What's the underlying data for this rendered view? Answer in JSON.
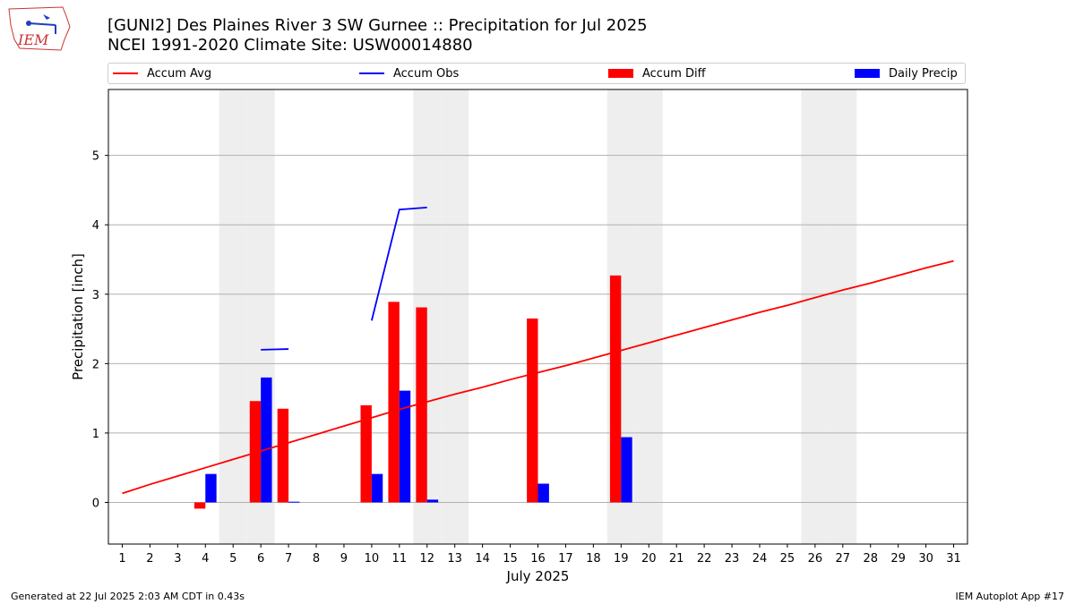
{
  "header": {
    "title_line1": "[GUNI2] Des Plaines River 3 SW Gurnee :: Precipitation for Jul 2025",
    "title_line2": "NCEI 1991-2020 Climate Site: USW00014880",
    "logo_text": "IEM"
  },
  "footer": {
    "generated": "Generated at 22 Jul 2025 2:03 AM CDT in 0.43s",
    "app": "IEM Autoplot App #17"
  },
  "colors": {
    "avg": "#ff0000",
    "obs": "#0000ff",
    "diff": "#ff0000",
    "daily": "#0000ff",
    "weekend": "#eeeeee",
    "grid": "#b0b0b0"
  },
  "chart_data": {
    "type": "bar",
    "xlabel": "July 2025",
    "ylabel": "Precipitation [inch]",
    "xlim": [
      0.5,
      31.5
    ],
    "ylim": [
      -0.6,
      5.95
    ],
    "yticks": [
      0,
      1,
      2,
      3,
      4,
      5
    ],
    "grid": "y",
    "legend_position": "top",
    "days": [
      1,
      2,
      3,
      4,
      5,
      6,
      7,
      8,
      9,
      10,
      11,
      12,
      13,
      14,
      15,
      16,
      17,
      18,
      19,
      20,
      21,
      22,
      23,
      24,
      25,
      26,
      27,
      28,
      29,
      30,
      31
    ],
    "weekend_days": [
      5,
      6,
      12,
      13,
      19,
      20,
      26,
      27
    ],
    "series": [
      {
        "name": "Accum Avg",
        "kind": "line",
        "values": [
          0.13,
          0.26,
          0.38,
          0.5,
          0.62,
          0.74,
          0.86,
          0.98,
          1.1,
          1.22,
          1.34,
          1.45,
          1.56,
          1.66,
          1.77,
          1.87,
          1.97,
          2.08,
          2.19,
          2.3,
          2.41,
          2.52,
          2.63,
          2.74,
          2.84,
          2.95,
          3.06,
          3.16,
          3.27,
          3.38,
          3.48
        ]
      },
      {
        "name": "Accum Obs",
        "kind": "line",
        "values": [
          null,
          null,
          null,
          null,
          null,
          2.2,
          2.21,
          null,
          null,
          2.62,
          4.22,
          4.25,
          null,
          null,
          null,
          null,
          null,
          null,
          null,
          null,
          null,
          null,
          null,
          null,
          null,
          null,
          null,
          null,
          null,
          null,
          null
        ]
      },
      {
        "name": "Accum Diff",
        "kind": "bar",
        "values": [
          null,
          null,
          null,
          -0.09,
          null,
          1.46,
          1.35,
          null,
          null,
          1.4,
          2.89,
          2.81,
          null,
          null,
          null,
          2.65,
          null,
          null,
          3.27,
          null,
          null,
          null,
          null,
          null,
          null,
          null,
          null,
          null,
          null,
          null,
          null
        ]
      },
      {
        "name": "Daily Precip",
        "kind": "bar",
        "values": [
          null,
          null,
          null,
          0.41,
          null,
          1.8,
          0.01,
          null,
          null,
          0.41,
          1.61,
          0.04,
          null,
          null,
          null,
          0.27,
          null,
          null,
          0.94,
          null,
          null,
          null,
          null,
          null,
          null,
          null,
          null,
          null,
          null,
          null,
          null
        ]
      }
    ]
  }
}
